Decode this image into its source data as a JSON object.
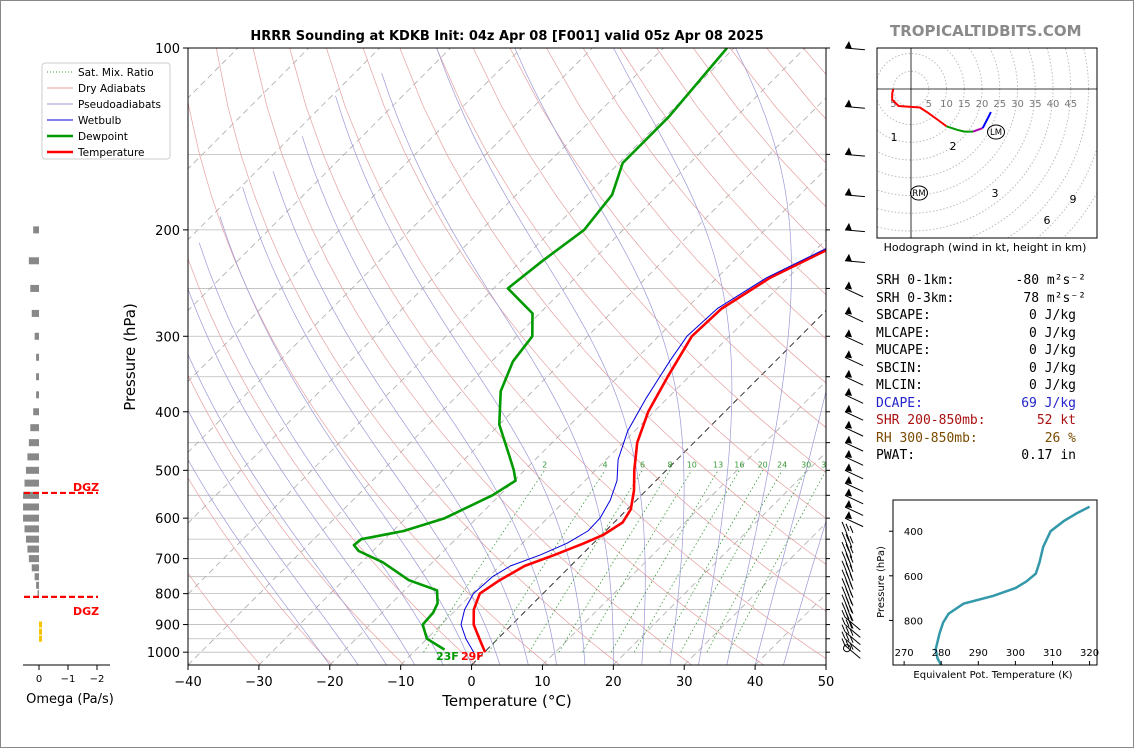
{
  "brand": "TROPICALTIDBITS.COM",
  "chart_data": [
    {
      "type": "line",
      "subtype": "skew-t log-p sounding",
      "title": "HRRR Sounding at KDKB Init: 04z Apr 08 [F001] valid 05z Apr 08 2025",
      "xlabel": "Temperature (°C)",
      "ylabel": "Pressure (hPa)",
      "xlim": [
        -40,
        50
      ],
      "ylim": [
        1050,
        100
      ],
      "yscale": "log",
      "x_ticks": [
        "−40",
        "−30",
        "−20",
        "−10",
        "0",
        "10",
        "20",
        "30",
        "40",
        "50"
      ],
      "y_ticks": [
        "100",
        "200",
        "300",
        "400",
        "500",
        "600",
        "700",
        "800",
        "900",
        "1000"
      ],
      "legend": {
        "placement": "top-left",
        "entries": [
          "Sat. Mix. Ratio",
          "Dry Adiabats",
          "Pseudoadiabats",
          "Wetbulb",
          "Dewpoint",
          "Temperature"
        ]
      },
      "mixing_ratio_labels": [
        "2",
        "4",
        "6",
        "8",
        "10",
        "13",
        "16",
        "20",
        "24",
        "30",
        "36"
      ],
      "surface_labels": {
        "dewpoint": "23F",
        "temperature": "29F"
      },
      "series": [
        {
          "name": "Temperature",
          "color": "#ff0000",
          "points": [
            [
              1000,
              0.1
            ],
            [
              950,
              -2.6
            ],
            [
              900,
              -5.4
            ],
            [
              850,
              -7.5
            ],
            [
              800,
              -8.9
            ],
            [
              760,
              -8.0
            ],
            [
              720,
              -6.5
            ],
            [
              690,
              -3.8
            ],
            [
              660,
              -1.3
            ],
            [
              640,
              0.2
            ],
            [
              610,
              1.2
            ],
            [
              580,
              0.5
            ],
            [
              540,
              -1.7
            ],
            [
              500,
              -4.5
            ],
            [
              450,
              -8.0
            ],
            [
              400,
              -10.8
            ],
            [
              350,
              -13.0
            ],
            [
              300,
              -15.3
            ],
            [
              270,
              -15.0
            ],
            [
              240,
              -12.5
            ],
            [
              215,
              -8.3
            ],
            [
              190,
              -7.3
            ],
            [
              170,
              -6.3
            ],
            [
              150,
              -3.5
            ],
            [
              125,
              -0.5
            ],
            [
              100,
              2.2
            ]
          ]
        },
        {
          "name": "Dewpoint",
          "color": "#009900",
          "points": [
            [
              990,
              -6.0
            ],
            [
              950,
              -10.0
            ],
            [
              900,
              -12.6
            ],
            [
              860,
              -12.8
            ],
            [
              830,
              -13.5
            ],
            [
              790,
              -15.4
            ],
            [
              760,
              -20.8
            ],
            [
              710,
              -27.0
            ],
            [
              680,
              -32.0
            ],
            [
              665,
              -33.5
            ],
            [
              650,
              -33.3
            ],
            [
              630,
              -28.5
            ],
            [
              600,
              -24.5
            ],
            [
              550,
              -21.0
            ],
            [
              520,
              -19.8
            ],
            [
              500,
              -21.5
            ],
            [
              470,
              -24.5
            ],
            [
              420,
              -30.0
            ],
            [
              370,
              -34.5
            ],
            [
              330,
              -37.0
            ],
            [
              300,
              -37.8
            ],
            [
              275,
              -41.0
            ],
            [
              250,
              -48.0
            ],
            [
              225,
              -47.0
            ],
            [
              200,
              -45.5
            ],
            [
              175,
              -46.5
            ],
            [
              155,
              -49.5
            ],
            [
              130,
              -49.5
            ],
            [
              100,
              -51.0
            ]
          ]
        },
        {
          "name": "Wetbulb",
          "color": "#0000dd",
          "points": [
            [
              1000,
              -1.5
            ],
            [
              950,
              -4.5
            ],
            [
              900,
              -7.2
            ],
            [
              850,
              -8.8
            ],
            [
              800,
              -9.8
            ],
            [
              750,
              -9.5
            ],
            [
              720,
              -8.5
            ],
            [
              690,
              -5.8
            ],
            [
              660,
              -3.7
            ],
            [
              630,
              -2.5
            ],
            [
              600,
              -2.6
            ],
            [
              560,
              -3.7
            ],
            [
              520,
              -5.5
            ],
            [
              480,
              -8.3
            ],
            [
              430,
              -11.0
            ],
            [
              380,
              -13.0
            ],
            [
              330,
              -14.9
            ],
            [
              300,
              -16.0
            ],
            [
              270,
              -15.6
            ],
            [
              240,
              -13.0
            ],
            [
              215,
              -8.8
            ],
            [
              190,
              -7.8
            ],
            [
              170,
              -6.6
            ],
            [
              150,
              -3.8
            ],
            [
              125,
              -0.8
            ],
            [
              100,
              2.0
            ]
          ]
        }
      ],
      "dgz_labels": [
        "DGZ",
        "DGZ"
      ],
      "omega_axis": {
        "xlabel": "Omega (Pa/s)",
        "x_ticks": [
          "0",
          "−1",
          "−2"
        ]
      }
    },
    {
      "type": "line",
      "subtype": "hodograph",
      "caption": "Hodograph (wind in kt, height in km)",
      "ring_labels": [
        "5",
        "5",
        "10",
        "15",
        "20",
        "25",
        "30",
        "35",
        "40",
        "45"
      ],
      "height_labels": [
        "1",
        "2",
        "3",
        "6",
        "9"
      ],
      "markers": [
        "LM",
        "RM"
      ],
      "segments": [
        {
          "color": "#ff0000",
          "points": [
            [
              -5,
              0
            ],
            [
              -5.3,
              -1.2
            ],
            [
              -5.3,
              -3
            ],
            [
              -3.5,
              -4.8
            ],
            [
              2.5,
              -5.2
            ],
            [
              4.5,
              -6.5
            ],
            [
              8,
              -9
            ],
            [
              10,
              -10.5
            ]
          ]
        },
        {
          "color": "#009900",
          "points": [
            [
              10,
              -10.5
            ],
            [
              13,
              -11.5
            ],
            [
              15,
              -12
            ],
            [
              17.5,
              -12
            ]
          ]
        },
        {
          "color": "#aa00aa",
          "points": [
            [
              17.5,
              -12
            ],
            [
              20.2,
              -11
            ]
          ]
        },
        {
          "color": "#0000ff",
          "points": [
            [
              20.2,
              -11
            ],
            [
              21.5,
              -8.5
            ],
            [
              22.5,
              -6.5
            ]
          ]
        }
      ]
    },
    {
      "type": "line",
      "subtype": "equivalent potential temperature profile",
      "xlabel": "Equivalent Pot. Temperature (K)",
      "ylabel": "Pressure (hPa)",
      "x_ticks": [
        "270",
        "280",
        "290",
        "300",
        "310",
        "320"
      ],
      "y_ticks": [
        "400",
        "600",
        "800"
      ],
      "xlim": [
        267,
        322
      ],
      "ylim": [
        1000,
        260
      ],
      "series": [
        {
          "color": "#3399aa",
          "points": [
            [
              280,
              1000
            ],
            [
              279,
              970
            ],
            [
              278.5,
              930
            ],
            [
              279.5,
              860
            ],
            [
              280.5,
              810
            ],
            [
              282,
              770
            ],
            [
              286,
              725
            ],
            [
              294,
              690
            ],
            [
              300,
              655
            ],
            [
              303,
              625
            ],
            [
              305.5,
              590
            ],
            [
              306.5,
              540
            ],
            [
              307.5,
              470
            ],
            [
              309.5,
              400
            ],
            [
              313,
              355
            ],
            [
              316.5,
              320
            ],
            [
              320,
              290
            ]
          ]
        }
      ]
    }
  ],
  "params": [
    {
      "label": "SRH 0-1km:",
      "value": "-80",
      "unit": "m²s⁻²",
      "color": "#000000"
    },
    {
      "label": "SRH 0-3km:",
      "value": "78",
      "unit": "m²s⁻²",
      "color": "#000000"
    },
    {
      "label": "SBCAPE:",
      "value": "0 J/kg",
      "unit": "",
      "color": "#000000"
    },
    {
      "label": "MLCAPE:",
      "value": "0 J/kg",
      "unit": "",
      "color": "#000000"
    },
    {
      "label": "MUCAPE:",
      "value": "0 J/kg",
      "unit": "",
      "color": "#000000"
    },
    {
      "label": "SBCIN:",
      "value": "0 J/kg",
      "unit": "",
      "color": "#000000"
    },
    {
      "label": "MLCIN:",
      "value": "0 J/kg",
      "unit": "",
      "color": "#000000"
    },
    {
      "label": "DCAPE:",
      "value": "69 J/kg",
      "unit": "",
      "color": "#2222cc"
    },
    {
      "label": "SHR 200-850mb:",
      "value": "52 kt",
      "unit": "",
      "color": "#aa1111"
    },
    {
      "label": "RH 300-850mb:",
      "value": "26 %",
      "unit": "",
      "color": "#7a4b00"
    },
    {
      "label": "PWAT:",
      "value": "0.17 in",
      "unit": "",
      "color": "#000000"
    }
  ]
}
